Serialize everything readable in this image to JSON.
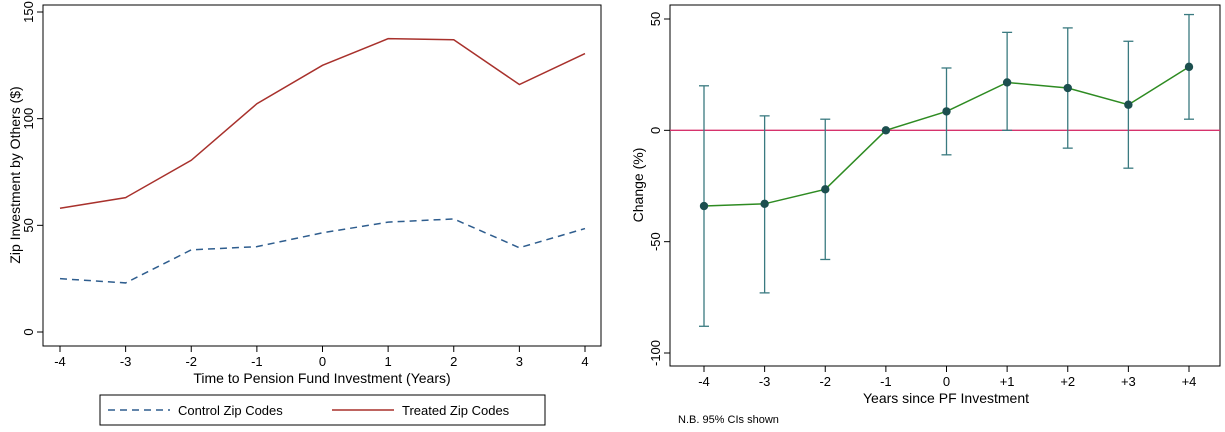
{
  "chart_data": [
    {
      "type": "line",
      "xlabel": "Time to Pension Fund Investment (Years)",
      "ylabel": "Zip Investment by Others ($)",
      "x": [
        -4,
        -3,
        -2,
        -1,
        0,
        1,
        2,
        3,
        4
      ],
      "x_tick_labels": [
        "-4",
        "-3",
        "-2",
        "-1",
        "0",
        "1",
        "2",
        "3",
        "4"
      ],
      "xlim": [
        -4,
        4
      ],
      "ylim": [
        0,
        150
      ],
      "y_ticks": [
        0,
        50,
        100,
        150
      ],
      "y_tick_labels": [
        "0",
        "50",
        "100",
        "150"
      ],
      "grid": false,
      "legend_position": "bottom",
      "series": [
        {
          "name": "Control Zip Codes",
          "color": "#2e5d8e",
          "dash": "dashed",
          "values": [
            25,
            23,
            38.5,
            40,
            46.5,
            51.5,
            53,
            39.5,
            48.5
          ]
        },
        {
          "name": "Treated Zip Codes",
          "color": "#a8312c",
          "dash": "solid",
          "values": [
            58,
            63,
            80.5,
            107,
            125,
            137.5,
            137,
            116,
            130.5
          ]
        }
      ]
    },
    {
      "type": "scatter",
      "xlabel": "Years since PF Investment",
      "ylabel": "Change (%)",
      "x_tick_labels": [
        "-4",
        "-3",
        "-2",
        "-1",
        "0",
        "+1",
        "+2",
        "+3",
        "+4"
      ],
      "x": [
        -4,
        -3,
        -2,
        -1,
        0,
        1,
        2,
        3,
        4
      ],
      "ylim": [
        -100,
        50
      ],
      "y_ticks": [
        -100,
        -50,
        0,
        50
      ],
      "y_tick_labels": [
        "-100",
        "-50",
        "0",
        "50"
      ],
      "grid": false,
      "reference_line_y": 0,
      "reference_line_color": "#d6336c",
      "line_color": "#2e8b22",
      "point_color": "#1c4f4f",
      "errorbar_color": "#3a7a80",
      "values": [
        -34,
        -33,
        -26.5,
        0,
        8.5,
        21.5,
        19,
        11.5,
        28.5
      ],
      "ci_low": [
        -88,
        -73,
        -58,
        0,
        -11,
        0,
        -8,
        -17,
        5
      ],
      "ci_high": [
        20,
        6.5,
        5,
        0,
        28,
        44,
        46,
        40,
        52
      ],
      "note": "N.B. 95% CIs shown"
    }
  ]
}
